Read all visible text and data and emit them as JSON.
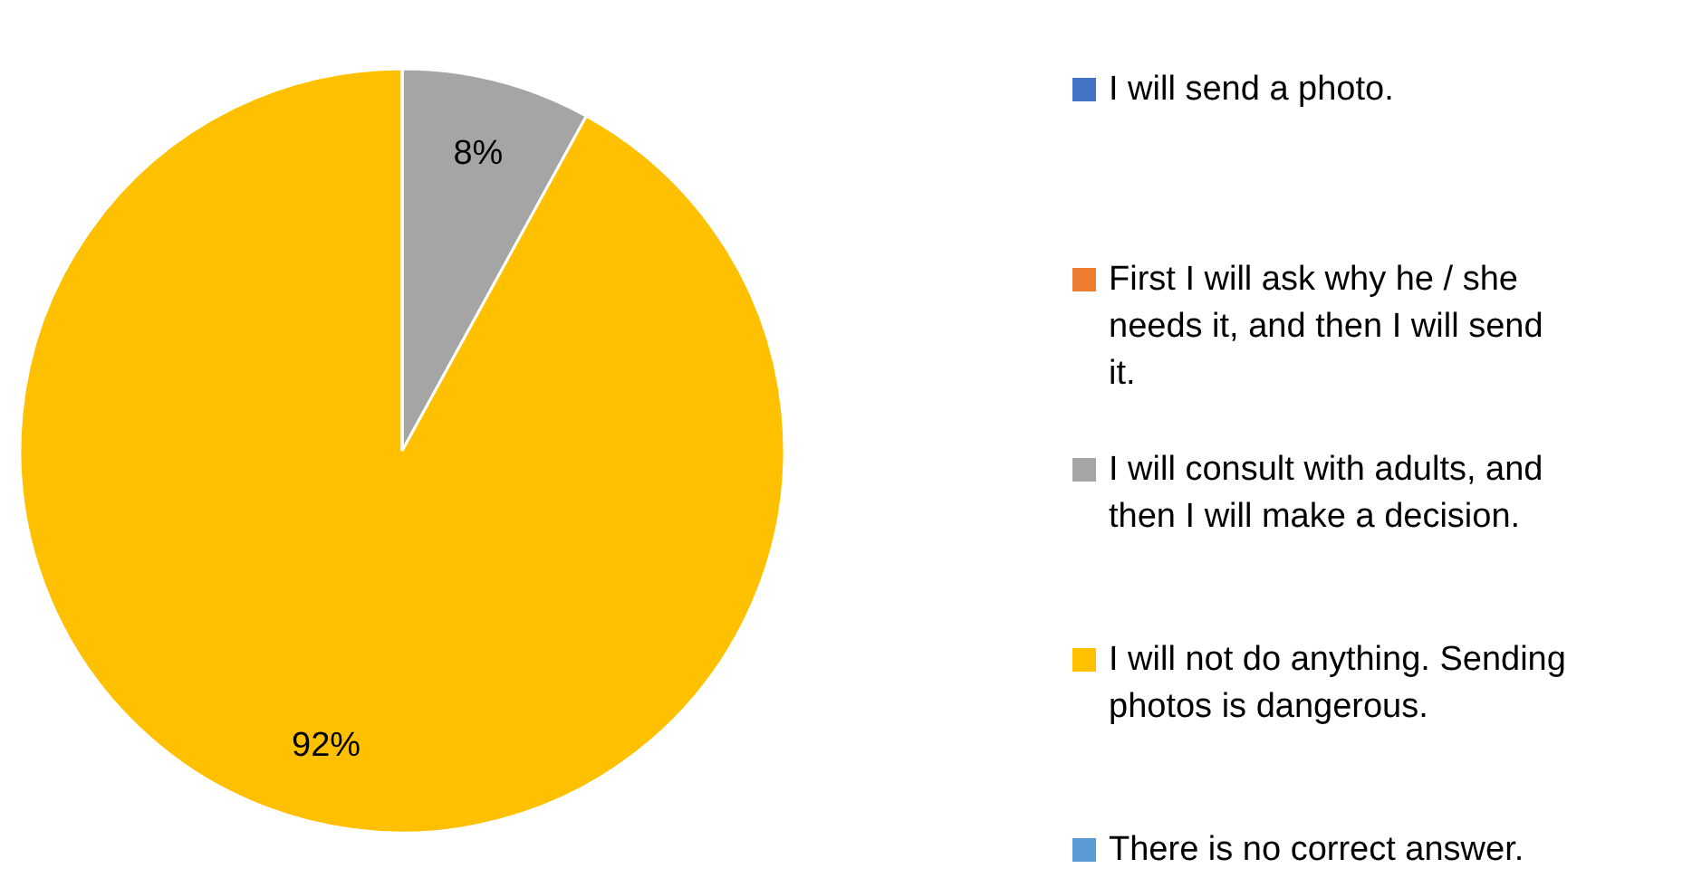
{
  "chart_data": {
    "type": "pie",
    "categories": [
      "I will send a photo.",
      "First I will ask why he / she needs it, and then I will send it.",
      "I will consult with adults, and then I will make a decision.",
      "I will not do anything. Sending photos is dangerous.",
      "There is no correct answer."
    ],
    "values": [
      0,
      0,
      8,
      92,
      0
    ],
    "colors": [
      "#4472c4",
      "#ed7d31",
      "#a5a5a5",
      "#ffc000",
      "#5b9bd5"
    ],
    "value_labels": [
      null,
      null,
      "8%",
      "92%",
      null
    ],
    "legend": "right"
  }
}
